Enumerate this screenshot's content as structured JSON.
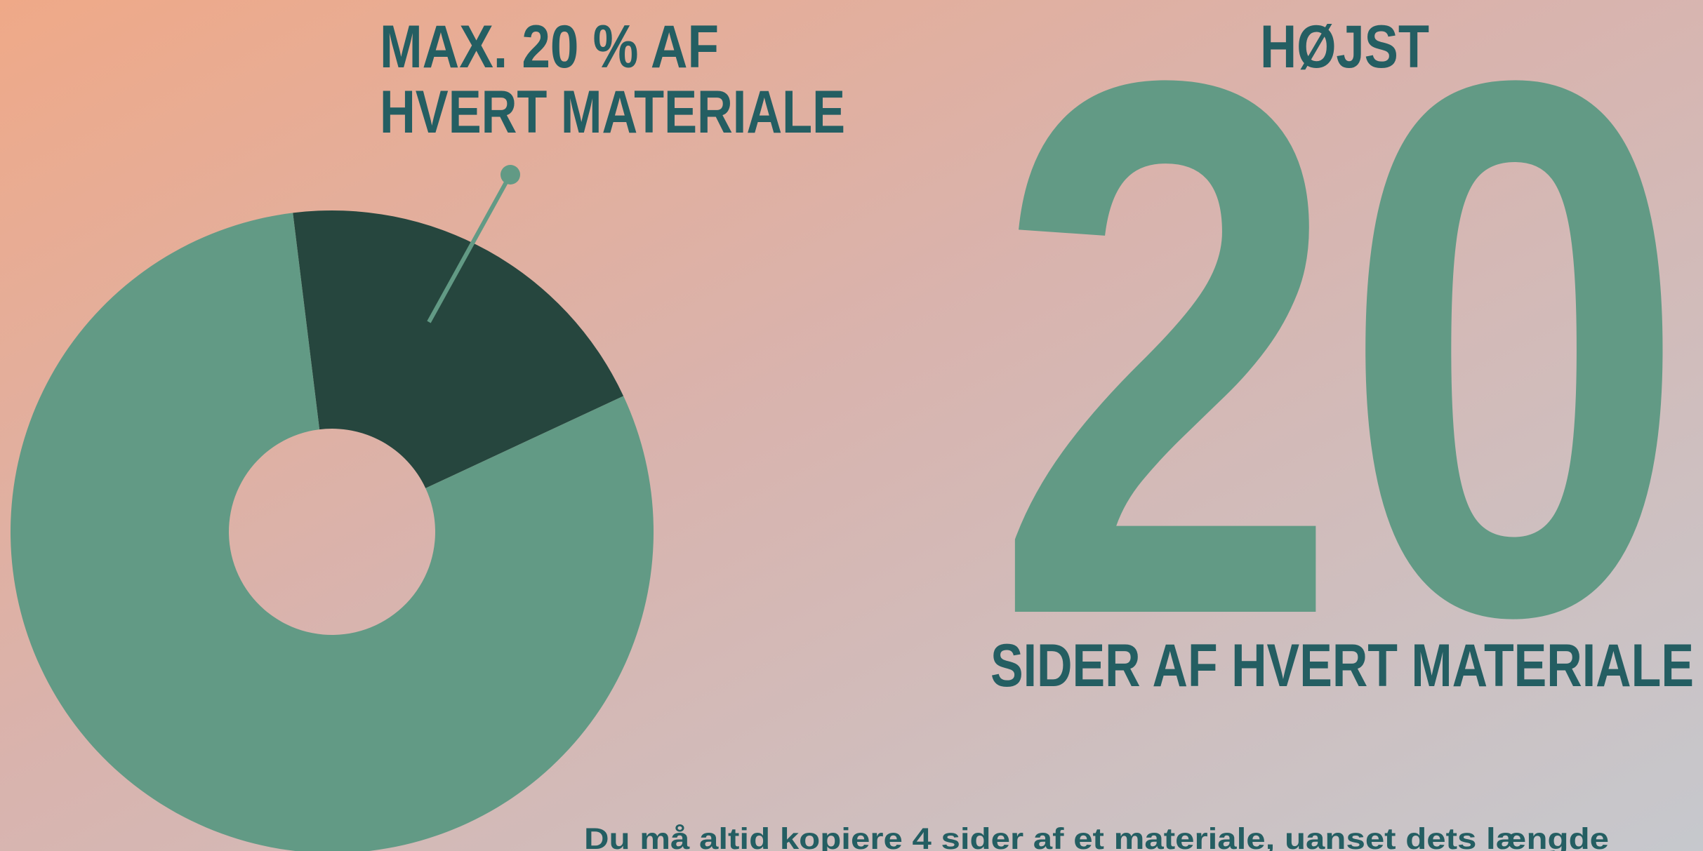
{
  "chart_data": {
    "type": "pie",
    "title": [
      "MAX. 20 % AF",
      "HVERT MATERIALE"
    ],
    "values": [
      20,
      80
    ],
    "colors": [
      "#26463e",
      "#629a85"
    ]
  },
  "headline": "HØJST",
  "big_number": "20",
  "subheadline": "SIDER AF HVERT MATERIALE",
  "footnote": "Du må altid kopiere 4 sider af et materiale, uanset dets længde"
}
